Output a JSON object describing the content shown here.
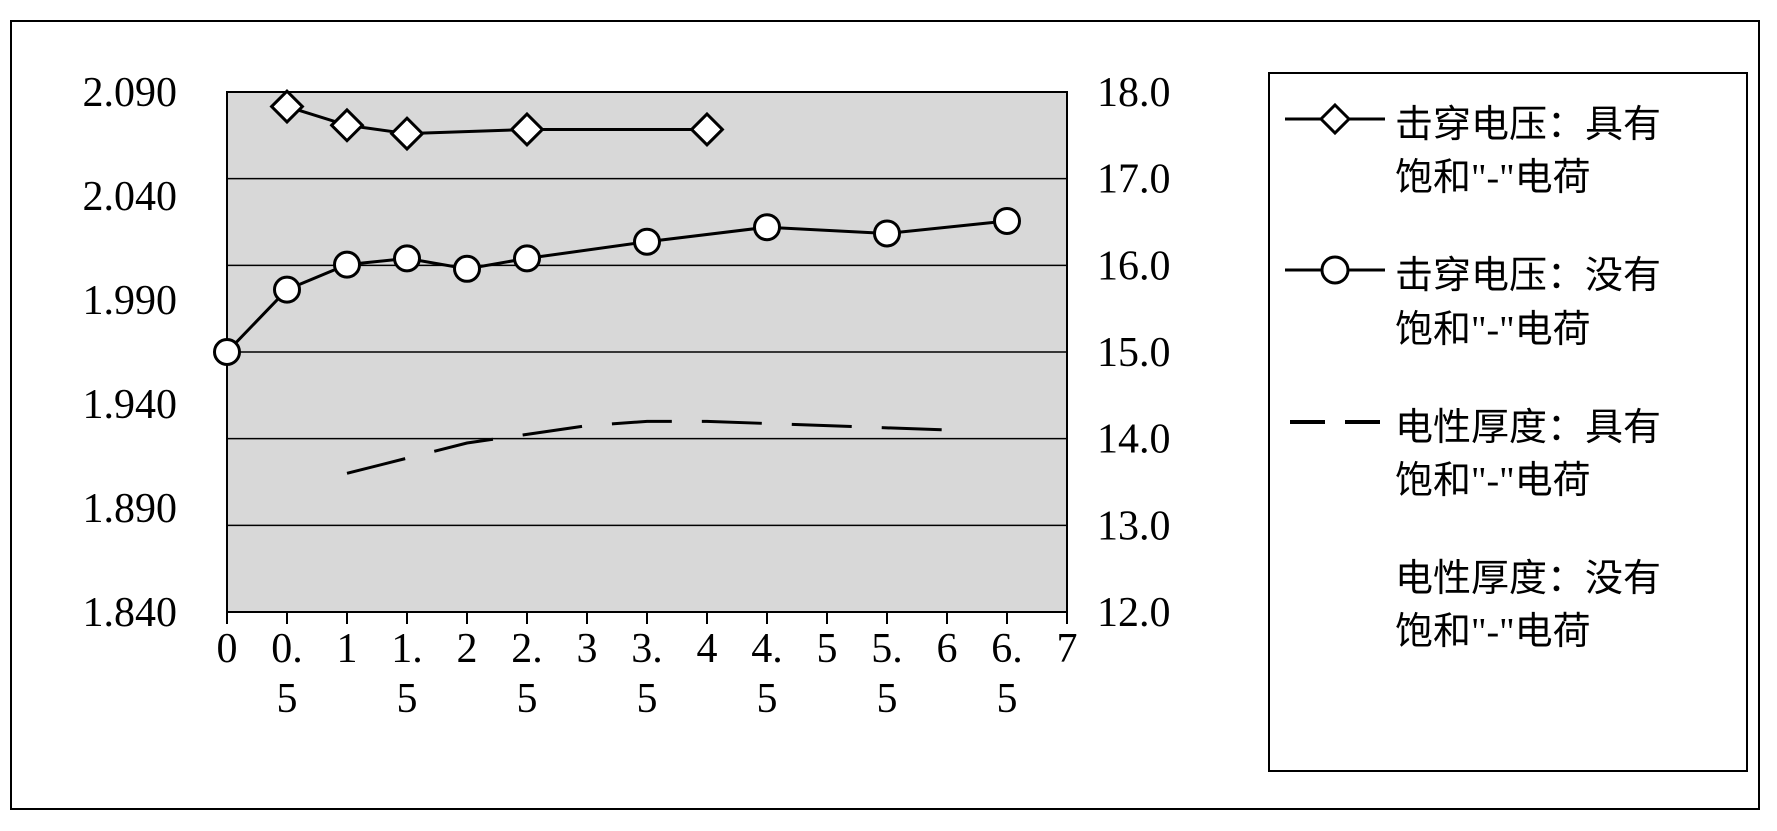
{
  "chart": {
    "type": "line-dual-axis",
    "background_color": "#ffffff",
    "plot_background_color": "#d8d8d8",
    "border_color": "#000000",
    "grid_color": "#000000",
    "line_color": "#000000",
    "line_width": 3,
    "marker_size": 20,
    "dash_pattern": "60 30",
    "tick_fontsize": 42,
    "legend_fontsize": 38,
    "x": {
      "min": 0,
      "max": 7,
      "ticks": [
        0,
        0.5,
        1,
        1.5,
        2,
        2.5,
        3,
        3.5,
        4,
        4.5,
        5,
        5.5,
        6,
        6.5,
        7
      ],
      "tick_labels": [
        "0",
        "0.5",
        "1",
        "1.5",
        "2",
        "2.5",
        "3",
        "3.5",
        "4",
        "4.5",
        "5",
        "5.5",
        "6",
        "6.5",
        "7"
      ]
    },
    "y_left": {
      "min": 1.84,
      "max": 2.09,
      "ticks": [
        1.84,
        1.89,
        1.94,
        1.99,
        2.04,
        2.09
      ],
      "tick_labels": [
        "1.840",
        "1.890",
        "1.940",
        "1.990",
        "2.040",
        "2.090"
      ]
    },
    "y_right": {
      "min": 12.0,
      "max": 18.0,
      "ticks": [
        12.0,
        13.0,
        14.0,
        15.0,
        16.0,
        17.0,
        18.0
      ],
      "tick_labels": [
        "12.0",
        "13.0",
        "14.0",
        "15.0",
        "16.0",
        "17.0",
        "18.0"
      ]
    },
    "series": [
      {
        "name": "breakdown_with",
        "axis": "left",
        "marker": "diamond",
        "x": [
          0.5,
          1.0,
          1.5,
          2.5,
          4.0
        ],
        "y": [
          2.083,
          2.074,
          2.07,
          2.072,
          2.072
        ]
      },
      {
        "name": "breakdown_without",
        "axis": "left",
        "marker": "circle",
        "x": [
          0,
          0.5,
          1.0,
          1.5,
          2.0,
          2.5,
          3.5,
          4.5,
          5.5,
          6.5
        ],
        "y": [
          1.965,
          1.995,
          2.007,
          2.01,
          2.005,
          2.01,
          2.018,
          2.025,
          2.022,
          2.028
        ]
      },
      {
        "name": "thickness_with",
        "axis": "right",
        "marker": "none",
        "dash": true,
        "x": [
          1.0,
          2.0,
          3.0,
          3.5,
          4.0,
          5.0,
          6.0
        ],
        "y": [
          13.6,
          13.95,
          14.15,
          14.2,
          14.2,
          14.15,
          14.1
        ]
      }
    ],
    "legend": {
      "items": [
        {
          "key": "breakdown_with",
          "swatch": "diamond-line",
          "line1": "击穿电压：具有",
          "line2": "饱和\"-\"电荷"
        },
        {
          "key": "breakdown_without",
          "swatch": "circle-line",
          "line1": "击穿电压：没有",
          "line2": "饱和\"-\"电荷"
        },
        {
          "key": "thickness_with",
          "swatch": "dash",
          "line1": "电性厚度：具有",
          "line2": "饱和\"-\"电荷"
        },
        {
          "key": "thickness_without",
          "swatch": "none",
          "line1": "电性厚度：没有",
          "line2": "饱和\"-\"电荷"
        }
      ]
    }
  }
}
